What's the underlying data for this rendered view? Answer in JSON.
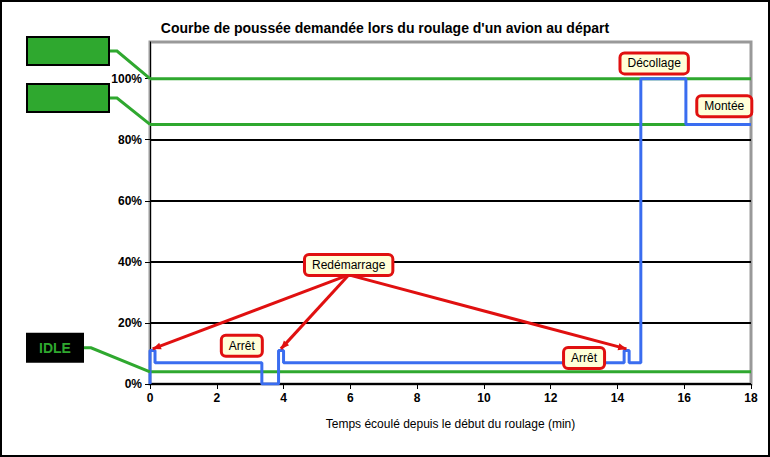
{
  "chart_data": {
    "type": "line",
    "title": "Courbe de poussée demandée lors du roulage d'un avion au départ",
    "x_label": "Temps écoulé depuis le début du roulage (min)",
    "x": [
      0,
      0,
      0.15,
      0.15,
      3.35,
      3.35,
      3.85,
      3.85,
      4.0,
      4.0,
      14.2,
      14.2,
      14.35,
      14.35,
      14.7,
      14.7,
      16.05,
      16.05,
      18
    ],
    "values": [
      0,
      11,
      11,
      7,
      7,
      0,
      0,
      11,
      11,
      7,
      7,
      11,
      11,
      7,
      7,
      100,
      100,
      85,
      85
    ],
    "color": "#3a6df0",
    "xlim": [
      0,
      18
    ],
    "xticks": [
      0,
      2,
      4,
      6,
      8,
      10,
      12,
      14,
      16,
      18
    ],
    "ylim": [
      0,
      112
    ],
    "yticks": [
      {
        "value": 0,
        "label": "0%"
      },
      {
        "value": 20,
        "label": "20%"
      },
      {
        "value": 40,
        "label": "40%"
      },
      {
        "value": 60,
        "label": "60%"
      },
      {
        "value": 80,
        "label": "80%"
      },
      {
        "value": 100,
        "label": "100%"
      }
    ],
    "grid": true,
    "reference_lines": [
      {
        "value": 100,
        "color": "#2fa82f"
      },
      {
        "value": 85,
        "color": "#2fa82f"
      },
      {
        "value": 4,
        "label": "IDLE",
        "color": "#2fa82f"
      }
    ],
    "annotations": [
      "Décollage",
      "Montée",
      "Redémarrage",
      "Arrêt",
      "Arrêt"
    ]
  }
}
